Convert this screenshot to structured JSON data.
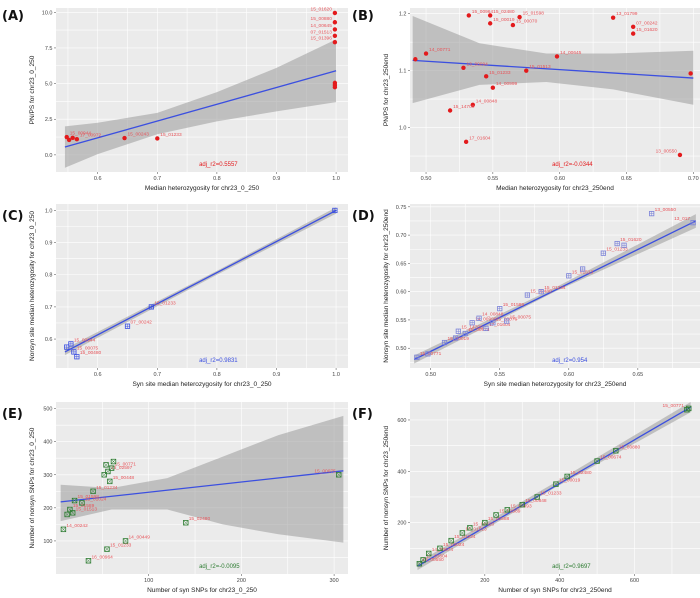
{
  "chart_data": [
    {
      "panel": "(A)",
      "type": "scatter",
      "xlabel": "Median heterozygosity for chr23_0_250",
      "ylabel": "PN/PS for chr23_0_250",
      "xlim": [
        0.53,
        1.02
      ],
      "ylim": [
        -1.2,
        10.3
      ],
      "xticks": [
        0.6,
        0.7,
        0.8,
        0.9,
        1.0
      ],
      "xtick_labels": [
        "0.6",
        "0.7",
        "0.8",
        "0.9",
        "1.0"
      ],
      "yticks": [
        0.0,
        2.5,
        5.0,
        7.5,
        10.0
      ],
      "ytick_labels": [
        "0.0",
        "2.5",
        "5.0",
        "7.5",
        "10.0"
      ],
      "marker": "circle",
      "color": "#e31a1c",
      "points": [
        {
          "x": 0.548,
          "y": 1.25,
          "label": "15_00944"
        },
        {
          "x": 0.552,
          "y": 1.05,
          "label": ""
        },
        {
          "x": 0.558,
          "y": 1.2,
          "label": ""
        },
        {
          "x": 0.565,
          "y": 1.1,
          "label": "17_00972"
        },
        {
          "x": 0.645,
          "y": 1.18,
          "label": "15_00243"
        },
        {
          "x": 0.7,
          "y": 1.15,
          "label": "15_01233"
        },
        {
          "x": 0.998,
          "y": 9.95,
          "label": "15_01620"
        },
        {
          "x": 0.998,
          "y": 9.3,
          "label": "15_00880"
        },
        {
          "x": 0.998,
          "y": 8.8,
          "label": "14_00645"
        },
        {
          "x": 0.998,
          "y": 8.35,
          "label": "07_01513"
        },
        {
          "x": 0.998,
          "y": 7.9,
          "label": "15_01396"
        },
        {
          "x": 0.998,
          "y": 5.05,
          "label": ""
        },
        {
          "x": 0.998,
          "y": 4.9,
          "label": ""
        },
        {
          "x": 0.998,
          "y": 4.75,
          "label": ""
        }
      ],
      "fit": {
        "x": [
          0.545,
          1.0
        ],
        "y": [
          0.55,
          5.9
        ]
      },
      "band": {
        "x": [
          0.545,
          0.6,
          0.7,
          0.8,
          0.9,
          1.0
        ],
        "lower": [
          -0.9,
          0.05,
          1.45,
          2.35,
          3.05,
          3.7
        ],
        "upper": [
          2.0,
          2.25,
          2.95,
          4.4,
          6.1,
          8.1
        ]
      },
      "annotation": "adj_r2=0.5557",
      "annotation_color": "#e31a1c"
    },
    {
      "panel": "(B)",
      "type": "scatter",
      "xlabel": "Median heterozygosity for chr23_250end",
      "ylabel": "PN/PS for chr23_250end",
      "xlim": [
        0.488,
        0.705
      ],
      "ylim": [
        0.922,
        1.21
      ],
      "xticks": [
        0.5,
        0.55,
        0.6,
        0.65,
        0.7
      ],
      "xtick_labels": [
        "0.50",
        "0.55",
        "0.60",
        "0.65",
        "0.70"
      ],
      "yticks": [
        1.0,
        1.1,
        1.2
      ],
      "ytick_labels": [
        "1.0",
        "1.1",
        "1.2"
      ],
      "marker": "circle",
      "color": "#e31a1c",
      "points": [
        {
          "x": 0.492,
          "y": 1.12,
          "label": ""
        },
        {
          "x": 0.5,
          "y": 1.13,
          "label": "14_00771"
        },
        {
          "x": 0.532,
          "y": 1.197,
          "label": "15_00964"
        },
        {
          "x": 0.548,
          "y": 1.197,
          "label": "15_02480"
        },
        {
          "x": 0.57,
          "y": 1.194,
          "label": "15_01598"
        },
        {
          "x": 0.548,
          "y": 1.183,
          "label": "15_00019"
        },
        {
          "x": 0.565,
          "y": 1.18,
          "label": "15_00070"
        },
        {
          "x": 0.64,
          "y": 1.193,
          "label": "13_01799"
        },
        {
          "x": 0.655,
          "y": 1.177,
          "label": "07_00242"
        },
        {
          "x": 0.655,
          "y": 1.165,
          "label": "15_01620"
        },
        {
          "x": 0.598,
          "y": 1.125,
          "label": "14_00645"
        },
        {
          "x": 0.528,
          "y": 1.105,
          "label": "13_00094"
        },
        {
          "x": 0.545,
          "y": 1.09,
          "label": "15_01233"
        },
        {
          "x": 0.575,
          "y": 1.1,
          "label": "15_01513"
        },
        {
          "x": 0.55,
          "y": 1.07,
          "label": "14_00999"
        },
        {
          "x": 0.535,
          "y": 1.04,
          "label": "14_00848"
        },
        {
          "x": 0.518,
          "y": 1.03,
          "label": "15_14700"
        },
        {
          "x": 0.53,
          "y": 0.975,
          "label": "17_01604"
        },
        {
          "x": 0.69,
          "y": 0.952,
          "label": "13_00550"
        },
        {
          "x": 0.698,
          "y": 1.095,
          "label": ""
        }
      ],
      "fit": {
        "x": [
          0.49,
          0.7
        ],
        "y": [
          1.118,
          1.087
        ]
      },
      "band": {
        "x": [
          0.49,
          0.54,
          0.59,
          0.64,
          0.7
        ],
        "lower": [
          1.043,
          1.075,
          1.08,
          1.067,
          1.04
        ],
        "upper": [
          1.196,
          1.148,
          1.13,
          1.13,
          1.135
        ]
      },
      "annotation": "adj_r2=-0.0344",
      "annotation_color": "#e31a1c"
    },
    {
      "panel": "(C)",
      "type": "scatter",
      "xlabel": "Syn site median heterozygosity for chr23_0_250",
      "ylabel": "Nonsyn site median heterozygosity for chr23_0_250",
      "xlim": [
        0.53,
        1.02
      ],
      "ylim": [
        0.51,
        1.02
      ],
      "xticks": [
        0.6,
        0.7,
        0.8,
        0.9,
        1.0
      ],
      "xtick_labels": [
        "0.6",
        "0.7",
        "0.8",
        "0.9",
        "1.0"
      ],
      "yticks": [
        0.6,
        0.7,
        0.8,
        0.9,
        1.0
      ],
      "ytick_labels": [
        "0.6",
        "0.7",
        "0.8",
        "0.9",
        "1.0"
      ],
      "marker": "square",
      "color": "#3b4fe0",
      "points": [
        {
          "x": 0.548,
          "y": 0.575,
          "label": ""
        },
        {
          "x": 0.555,
          "y": 0.585,
          "label": "15_00944"
        },
        {
          "x": 0.56,
          "y": 0.56,
          "label": "15_00075"
        },
        {
          "x": 0.565,
          "y": 0.545,
          "label": "15_00480"
        },
        {
          "x": 0.65,
          "y": 0.64,
          "label": "07_00242"
        },
        {
          "x": 0.69,
          "y": 0.7,
          "label": "15_01233"
        },
        {
          "x": 0.998,
          "y": 1.0,
          "label": ""
        }
      ],
      "fit": {
        "x": [
          0.545,
          1.0
        ],
        "y": [
          0.56,
          1.0
        ]
      },
      "band": {
        "x": [
          0.545,
          0.8,
          1.0
        ],
        "lower": [
          0.55,
          0.8,
          0.99
        ],
        "upper": [
          0.57,
          0.812,
          1.01
        ]
      },
      "annotation": "adj_r2=0.9831",
      "annotation_color": "#3b4fe0"
    },
    {
      "panel": "(D)",
      "type": "scatter",
      "xlabel": "Syn site median heterozygosity for chr23_250end",
      "ylabel": "Nonsyn site median heterozygosity for chr23_250end",
      "xlim": [
        0.485,
        0.695
      ],
      "ylim": [
        0.465,
        0.755
      ],
      "xticks": [
        0.5,
        0.55,
        0.6,
        0.65
      ],
      "xtick_labels": [
        "0.50",
        "0.55",
        "0.60",
        "0.65"
      ],
      "yticks": [
        0.5,
        0.55,
        0.6,
        0.65,
        0.7,
        0.75
      ],
      "ytick_labels": [
        "0.50",
        "0.55",
        "0.60",
        "0.65",
        "0.70",
        "0.75"
      ],
      "marker": "square",
      "color": "#7b82d8",
      "points": [
        {
          "x": 0.49,
          "y": 0.484,
          "label": "15_00771"
        },
        {
          "x": 0.498,
          "y": 0.49,
          "label": ""
        },
        {
          "x": 0.51,
          "y": 0.51,
          "label": "15_00019"
        },
        {
          "x": 0.518,
          "y": 0.518,
          "label": ""
        },
        {
          "x": 0.52,
          "y": 0.53,
          "label": "15_14700"
        },
        {
          "x": 0.525,
          "y": 0.526,
          "label": "15_00674"
        },
        {
          "x": 0.53,
          "y": 0.545,
          "label": "14_00999"
        },
        {
          "x": 0.535,
          "y": 0.553,
          "label": "14_00848"
        },
        {
          "x": 0.54,
          "y": 0.535,
          "label": "17_01604"
        },
        {
          "x": 0.545,
          "y": 0.545,
          "label": "15_00076"
        },
        {
          "x": 0.55,
          "y": 0.57,
          "label": "15_01589"
        },
        {
          "x": 0.555,
          "y": 0.548,
          "label": "15_00075"
        },
        {
          "x": 0.57,
          "y": 0.594,
          "label": "15_02480"
        },
        {
          "x": 0.58,
          "y": 0.6,
          "label": "15_01234"
        },
        {
          "x": 0.6,
          "y": 0.628,
          "label": "15_01513"
        },
        {
          "x": 0.61,
          "y": 0.64,
          "label": ""
        },
        {
          "x": 0.625,
          "y": 0.668,
          "label": "15_01233"
        },
        {
          "x": 0.635,
          "y": 0.685,
          "label": "15_01620"
        },
        {
          "x": 0.64,
          "y": 0.682,
          "label": ""
        },
        {
          "x": 0.66,
          "y": 0.738,
          "label": "13_00550"
        },
        {
          "x": 0.69,
          "y": 0.722,
          "label": "13_017"
        }
      ],
      "fit": {
        "x": [
          0.488,
          0.692
        ],
        "y": [
          0.48,
          0.725
        ]
      },
      "band": {
        "x": [
          0.488,
          0.59,
          0.692
        ],
        "lower": [
          0.473,
          0.6,
          0.713
        ],
        "upper": [
          0.487,
          0.607,
          0.737
        ]
      },
      "annotation": "adj_r2=0.954",
      "annotation_color": "#3b4fe0"
    },
    {
      "panel": "(E)",
      "type": "scatter",
      "xlabel": "Number of syn SNPs for chr23_0_250",
      "ylabel": "Number of nonsyn SNPs for chr23_0_250",
      "xlim": [
        0,
        315
      ],
      "ylim": [
        0,
        520
      ],
      "xticks": [
        100,
        200,
        300
      ],
      "xtick_labels": [
        "100",
        "200",
        "300"
      ],
      "yticks": [
        100,
        200,
        300,
        400,
        500
      ],
      "ytick_labels": [
        "100",
        "200",
        "300",
        "400",
        "500"
      ],
      "marker": "square-x",
      "color": "#2e7d32",
      "points": [
        {
          "x": 8,
          "y": 135,
          "label": "14_00242"
        },
        {
          "x": 12,
          "y": 180,
          "label": ""
        },
        {
          "x": 15,
          "y": 195,
          "label": "15_01589"
        },
        {
          "x": 18,
          "y": 185,
          "label": "15_01513"
        },
        {
          "x": 20,
          "y": 222,
          "label": "15_01598"
        },
        {
          "x": 28,
          "y": 215,
          "label": "15_01024"
        },
        {
          "x": 35,
          "y": 40,
          "label": "16_00964"
        },
        {
          "x": 40,
          "y": 250,
          "label": "15_01234"
        },
        {
          "x": 52,
          "y": 300,
          "label": ""
        },
        {
          "x": 56,
          "y": 310,
          "label": "15_02597"
        },
        {
          "x": 60,
          "y": 320,
          "label": "15_00771"
        },
        {
          "x": 54,
          "y": 330,
          "label": ""
        },
        {
          "x": 62,
          "y": 340,
          "label": ""
        },
        {
          "x": 58,
          "y": 280,
          "label": "15_00448"
        },
        {
          "x": 55,
          "y": 75,
          "label": "15_01233"
        },
        {
          "x": 75,
          "y": 100,
          "label": "14_00449"
        },
        {
          "x": 140,
          "y": 155,
          "label": "15_02480"
        },
        {
          "x": 305,
          "y": 300,
          "label": "15_00075"
        }
      ],
      "fit": {
        "x": [
          5,
          310
        ],
        "y": [
          218,
          312
        ]
      },
      "band": {
        "x": [
          5,
          60,
          120,
          180,
          240,
          310
        ],
        "lower": [
          160,
          195,
          195,
          150,
          120,
          95
        ],
        "upper": [
          270,
          260,
          290,
          355,
          420,
          478
        ]
      },
      "annotation": "adj_r2=-0.0095",
      "annotation_color": "#2e7d32"
    },
    {
      "panel": "(F)",
      "type": "scatter",
      "xlabel": "Number of syn SNPs for chr23_250end",
      "ylabel": "Number of nonsyn SNPs for chr23_250end",
      "xlim": [
        0,
        775
      ],
      "ylim": [
        0,
        670
      ],
      "xticks": [
        200,
        400,
        600
      ],
      "xtick_labels": [
        "200",
        "400",
        "600"
      ],
      "yticks": [
        200,
        400,
        600
      ],
      "ytick_labels": [
        "200",
        "400",
        "600"
      ],
      "marker": "square-x",
      "color": "#2e7d32",
      "points": [
        {
          "x": 25,
          "y": 40,
          "label": "15_00550"
        },
        {
          "x": 35,
          "y": 55,
          "label": "17_01604"
        },
        {
          "x": 50,
          "y": 80,
          "label": "14_00674"
        },
        {
          "x": 80,
          "y": 100,
          "label": "15_01024"
        },
        {
          "x": 110,
          "y": 130,
          "label": "15_01234"
        },
        {
          "x": 140,
          "y": 160,
          "label": "15_01513"
        },
        {
          "x": 160,
          "y": 180,
          "label": "15_01620"
        },
        {
          "x": 200,
          "y": 200,
          "label": "15_01588"
        },
        {
          "x": 230,
          "y": 230,
          "label": "15_01589"
        },
        {
          "x": 260,
          "y": 250,
          "label": "15_00993"
        },
        {
          "x": 300,
          "y": 270,
          "label": "15_00848"
        },
        {
          "x": 340,
          "y": 300,
          "label": "15_01233"
        },
        {
          "x": 390,
          "y": 350,
          "label": "15_00019"
        },
        {
          "x": 420,
          "y": 380,
          "label": "15_02480"
        },
        {
          "x": 500,
          "y": 440,
          "label": "15_00674"
        },
        {
          "x": 550,
          "y": 480,
          "label": "15_00880"
        },
        {
          "x": 740,
          "y": 640,
          "label": "15_00771"
        },
        {
          "x": 745,
          "y": 645,
          "label": ""
        }
      ],
      "fit": {
        "x": [
          20,
          750
        ],
        "y": [
          30,
          650
        ]
      },
      "band": {
        "x": [
          20,
          380,
          750
        ],
        "lower": [
          15,
          330,
          630
        ],
        "upper": [
          45,
          350,
          670
        ]
      },
      "annotation": "adj_r2=0.9697",
      "annotation_color": "#2e7d32"
    }
  ]
}
